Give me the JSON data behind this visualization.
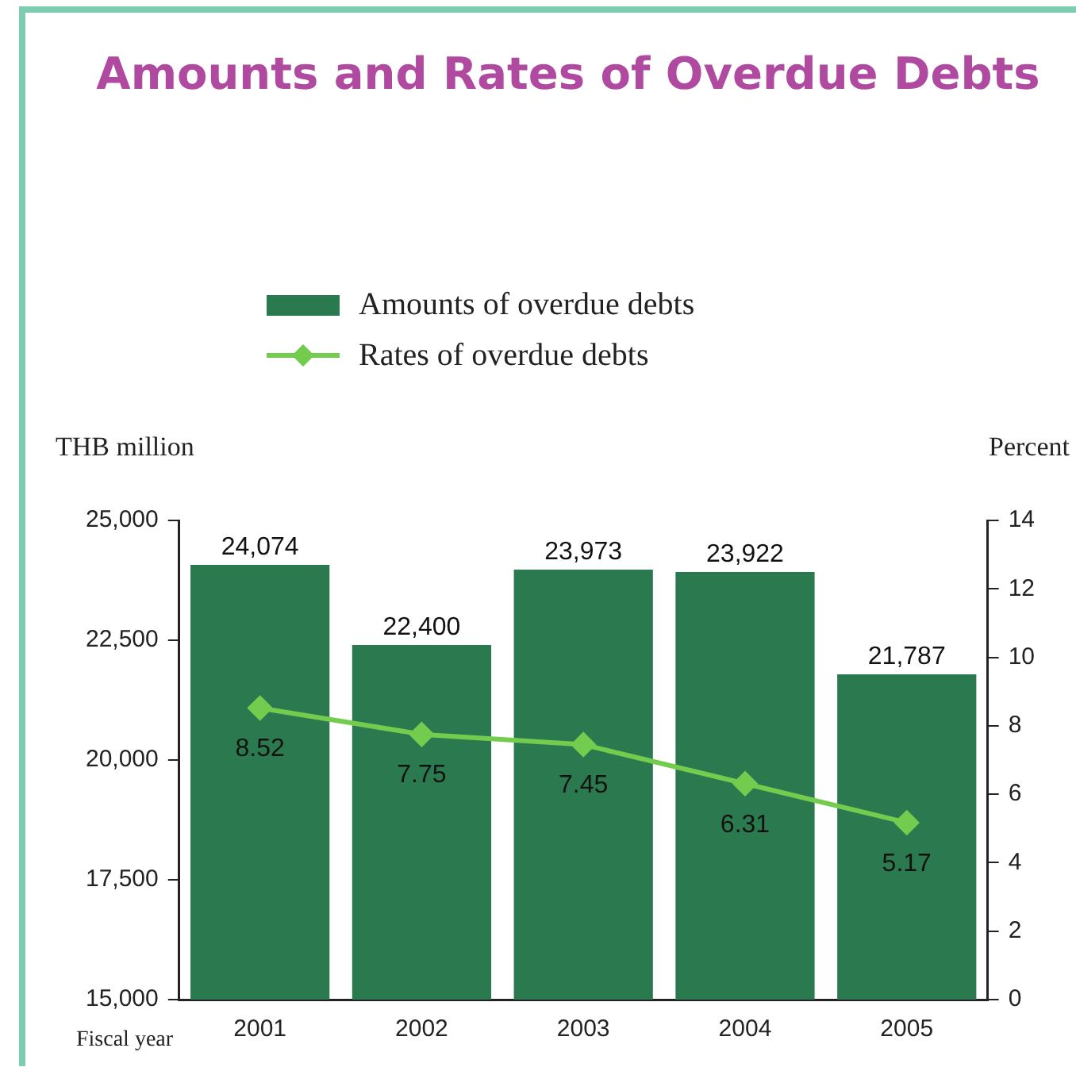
{
  "chart_data": {
    "type": "bar",
    "title": "Amounts and Rates of Overdue Debts",
    "xlabel": "Fiscal year",
    "ylabel": "THB million",
    "y2label": "Percent",
    "categories": [
      "2001",
      "2002",
      "2003",
      "2004",
      "2005"
    ],
    "series": [
      {
        "name": "Amounts of overdue debts",
        "color": "#2b7a4f",
        "values": [
          24074,
          22400,
          23973,
          23922,
          21787
        ],
        "value_labels": [
          "24,074",
          "22,400",
          "23,973",
          "23,922",
          "21,787"
        ]
      },
      {
        "name": "Rates of overdue debts",
        "type": "line",
        "axis": "y2",
        "color": "#74cc4e",
        "marker": "diamond",
        "values": [
          8.52,
          7.75,
          7.45,
          6.31,
          5.17
        ],
        "value_labels": [
          "8.52",
          "7.75",
          "7.45",
          "6.31",
          "5.17"
        ]
      }
    ],
    "ylim": [
      15000,
      25000
    ],
    "yticks": [
      {
        "value": 15000,
        "label": "15,000"
      },
      {
        "value": 17500,
        "label": "17,500"
      },
      {
        "value": 20000,
        "label": "20,000"
      },
      {
        "value": 22500,
        "label": "22,500"
      },
      {
        "value": 25000,
        "label": "25,000"
      }
    ],
    "y2lim": [
      0,
      14
    ],
    "y2ticks": [
      0,
      2,
      4,
      6,
      8,
      10,
      12,
      14
    ],
    "grid": false,
    "legend": "top"
  }
}
